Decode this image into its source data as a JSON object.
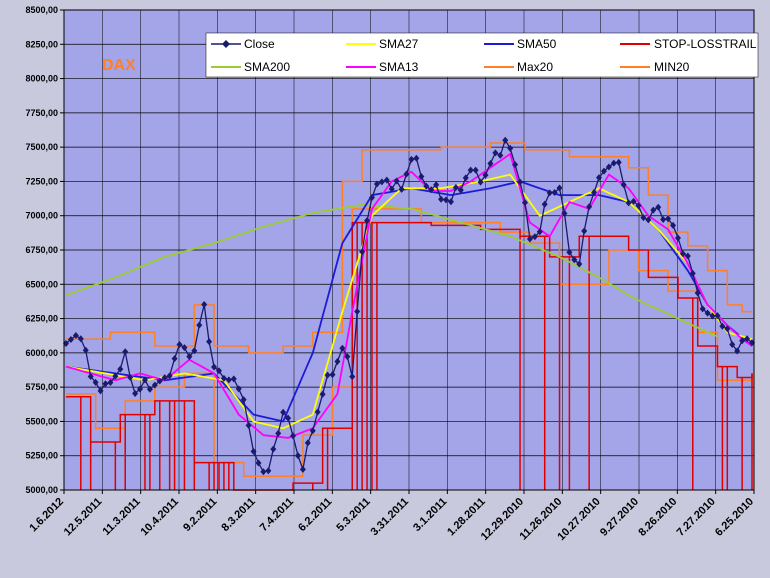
{
  "chart_data": {
    "type": "line",
    "annotation": "DAX",
    "ylim": [
      5000,
      8500
    ],
    "y_ticks": [
      5000,
      5250,
      5500,
      5750,
      6000,
      6250,
      6500,
      6750,
      7000,
      7250,
      7500,
      7750,
      8000,
      8250,
      8500
    ],
    "y_tick_labels": [
      "5000,00",
      "5250,00",
      "5500,00",
      "5750,00",
      "6000,00",
      "6250,00",
      "6500,00",
      "6750,00",
      "7000,00",
      "7250,00",
      "7500,00",
      "7750,00",
      "8000,00",
      "8250,00",
      "8500,00"
    ],
    "x_tick_labels": [
      "1.6.2012",
      "12.5.2011",
      "11.3.2011",
      "10.4.2011",
      "9.2.2011",
      "8.3.2011",
      "7.4.2011",
      "6.2.2011",
      "5.3.2011",
      "3.31.2011",
      "3.1.2011",
      "1.28.2011",
      "12.29.2010",
      "11.26.2010",
      "10.27.2010",
      "9.27.2010",
      "8.26.2010",
      "7.27.2010",
      "6.25.2010"
    ],
    "n_points": 140,
    "legend": {
      "close": "Close",
      "sma27": "SMA27",
      "sma50": "SMA50",
      "stop": "STOP-LOSSTRAIL",
      "sma200": "SMA200",
      "sma13": "SMA13",
      "max20": "Max20",
      "min20": "MIN20"
    },
    "colors": {
      "close": "#1a1a6e",
      "sma27": "#ffff00",
      "sma50": "#1c1cd6",
      "stop": "#e00000",
      "sma200": "#9acd32",
      "sma13": "#ff00ff",
      "maxmin": "#ff7f27",
      "plot_bg": "#a4a4e8",
      "outer_bg": "#c9c9de",
      "grid": "#000000",
      "annotation": "#ff7f27"
    },
    "series": [
      {
        "name": "Close",
        "key": "close",
        "anchors": [
          [
            0,
            6050
          ],
          [
            3,
            6150
          ],
          [
            5,
            5820
          ],
          [
            8,
            5730
          ],
          [
            12,
            5960
          ],
          [
            14,
            5720
          ],
          [
            16,
            5760
          ],
          [
            20,
            5790
          ],
          [
            23,
            6040
          ],
          [
            26,
            6000
          ],
          [
            28,
            6360
          ],
          [
            30,
            5870
          ],
          [
            33,
            5820
          ],
          [
            36,
            5690
          ],
          [
            38,
            5250
          ],
          [
            41,
            5120
          ],
          [
            44,
            5590
          ],
          [
            46,
            5390
          ],
          [
            48,
            5160
          ],
          [
            51,
            5590
          ],
          [
            53,
            5800
          ],
          [
            56,
            6020
          ],
          [
            58,
            5870
          ],
          [
            60,
            6720
          ],
          [
            62,
            7180
          ],
          [
            65,
            7260
          ],
          [
            68,
            7190
          ],
          [
            70,
            7440
          ],
          [
            73,
            7230
          ],
          [
            76,
            7150
          ],
          [
            78,
            7100
          ],
          [
            80,
            7230
          ],
          [
            82,
            7320
          ],
          [
            85,
            7280
          ],
          [
            87,
            7450
          ],
          [
            89,
            7520
          ],
          [
            90,
            7480
          ],
          [
            92,
            7280
          ],
          [
            94,
            6830
          ],
          [
            96,
            6900
          ],
          [
            98,
            7180
          ],
          [
            100,
            7200
          ],
          [
            102,
            6760
          ],
          [
            104,
            6630
          ],
          [
            106,
            7100
          ],
          [
            108,
            7250
          ],
          [
            110,
            7390
          ],
          [
            112,
            7360
          ],
          [
            114,
            7120
          ],
          [
            116,
            7050
          ],
          [
            118,
            6980
          ],
          [
            120,
            7050
          ],
          [
            122,
            6970
          ],
          [
            124,
            6840
          ],
          [
            126,
            6680
          ],
          [
            128,
            6450
          ],
          [
            130,
            6250
          ],
          [
            132,
            6290
          ],
          [
            134,
            6130
          ],
          [
            136,
            6030
          ],
          [
            137,
            6090
          ],
          [
            138,
            6060
          ],
          [
            139,
            6110
          ]
        ]
      },
      {
        "name": "SMA13",
        "key": "sma13",
        "anchors": [
          [
            0,
            5900
          ],
          [
            5,
            5850
          ],
          [
            10,
            5800
          ],
          [
            15,
            5850
          ],
          [
            20,
            5800
          ],
          [
            25,
            5950
          ],
          [
            30,
            5850
          ],
          [
            35,
            5550
          ],
          [
            40,
            5400
          ],
          [
            45,
            5380
          ],
          [
            50,
            5450
          ],
          [
            55,
            5700
          ],
          [
            58,
            6300
          ],
          [
            62,
            7050
          ],
          [
            66,
            7250
          ],
          [
            70,
            7320
          ],
          [
            74,
            7180
          ],
          [
            78,
            7180
          ],
          [
            82,
            7250
          ],
          [
            86,
            7350
          ],
          [
            90,
            7450
          ],
          [
            94,
            6950
          ],
          [
            98,
            6850
          ],
          [
            102,
            7100
          ],
          [
            106,
            7050
          ],
          [
            110,
            7300
          ],
          [
            114,
            7200
          ],
          [
            118,
            7000
          ],
          [
            122,
            6900
          ],
          [
            126,
            6650
          ],
          [
            130,
            6350
          ],
          [
            134,
            6200
          ],
          [
            137,
            6100
          ],
          [
            139,
            6050
          ]
        ]
      },
      {
        "name": "SMA27",
        "key": "sma27",
        "anchors": [
          [
            0,
            5900
          ],
          [
            8,
            5850
          ],
          [
            16,
            5800
          ],
          [
            24,
            5850
          ],
          [
            32,
            5800
          ],
          [
            38,
            5500
          ],
          [
            44,
            5450
          ],
          [
            50,
            5550
          ],
          [
            56,
            6300
          ],
          [
            62,
            7000
          ],
          [
            68,
            7200
          ],
          [
            76,
            7200
          ],
          [
            84,
            7250
          ],
          [
            90,
            7300
          ],
          [
            96,
            7000
          ],
          [
            102,
            7100
          ],
          [
            108,
            7200
          ],
          [
            114,
            7100
          ],
          [
            120,
            6900
          ],
          [
            126,
            6650
          ],
          [
            130,
            6350
          ],
          [
            134,
            6150
          ],
          [
            139,
            6100
          ]
        ]
      },
      {
        "name": "SMA50",
        "key": "sma50",
        "anchors": [
          [
            0,
            5900
          ],
          [
            10,
            5850
          ],
          [
            20,
            5800
          ],
          [
            30,
            5850
          ],
          [
            38,
            5550
          ],
          [
            44,
            5500
          ],
          [
            50,
            6000
          ],
          [
            56,
            6800
          ],
          [
            62,
            7150
          ],
          [
            70,
            7200
          ],
          [
            78,
            7150
          ],
          [
            86,
            7200
          ],
          [
            92,
            7250
          ],
          [
            100,
            7150
          ],
          [
            108,
            7150
          ],
          [
            114,
            7100
          ],
          [
            120,
            6900
          ],
          [
            126,
            6600
          ],
          [
            130,
            6350
          ],
          [
            134,
            6200
          ],
          [
            139,
            6050
          ]
        ]
      },
      {
        "name": "SMA200",
        "key": "sma200",
        "anchors": [
          [
            0,
            6420
          ],
          [
            10,
            6550
          ],
          [
            20,
            6700
          ],
          [
            30,
            6800
          ],
          [
            40,
            6920
          ],
          [
            50,
            7020
          ],
          [
            60,
            7080
          ],
          [
            70,
            7050
          ],
          [
            80,
            6950
          ],
          [
            90,
            6850
          ],
          [
            100,
            6700
          ],
          [
            108,
            6550
          ],
          [
            115,
            6400
          ],
          [
            124,
            6250
          ],
          [
            130,
            6150
          ],
          [
            132,
            6120
          ]
        ]
      },
      {
        "name": "Max20",
        "key": "max20",
        "steps": [
          [
            0,
            6100
          ],
          [
            9,
            6150
          ],
          [
            18,
            6050
          ],
          [
            26,
            6350
          ],
          [
            30,
            6050
          ],
          [
            37,
            6000
          ],
          [
            44,
            6050
          ],
          [
            50,
            6150
          ],
          [
            56,
            7250
          ],
          [
            60,
            7480
          ],
          [
            66,
            7480
          ],
          [
            76,
            7500
          ],
          [
            86,
            7530
          ],
          [
            93,
            7480
          ],
          [
            98,
            7480
          ],
          [
            102,
            7430
          ],
          [
            110,
            7430
          ],
          [
            114,
            7350
          ],
          [
            118,
            7150
          ],
          [
            122,
            6880
          ],
          [
            126,
            6780
          ],
          [
            130,
            6600
          ],
          [
            134,
            6350
          ],
          [
            137,
            6300
          ],
          [
            139,
            6300
          ]
        ]
      },
      {
        "name": "MIN20",
        "key": "min20",
        "steps": [
          [
            0,
            5700
          ],
          [
            6,
            5450
          ],
          [
            12,
            5650
          ],
          [
            18,
            5750
          ],
          [
            24,
            5850
          ],
          [
            30,
            5200
          ],
          [
            36,
            5100
          ],
          [
            44,
            5100
          ],
          [
            48,
            5400
          ],
          [
            54,
            5750
          ],
          [
            58,
            7050
          ],
          [
            66,
            7050
          ],
          [
            72,
            6950
          ],
          [
            80,
            6950
          ],
          [
            88,
            6880
          ],
          [
            94,
            6800
          ],
          [
            100,
            6500
          ],
          [
            106,
            6500
          ],
          [
            110,
            6750
          ],
          [
            116,
            6600
          ],
          [
            122,
            6450
          ],
          [
            128,
            6150
          ],
          [
            132,
            5800
          ],
          [
            137,
            5800
          ],
          [
            139,
            5850
          ]
        ]
      },
      {
        "name": "STOP-LOSSTRAIL",
        "key": "stop",
        "steps": [
          [
            0,
            5680
          ],
          [
            5,
            5350
          ],
          [
            11,
            5550
          ],
          [
            18,
            5650
          ],
          [
            26,
            5200
          ],
          [
            34,
            5000
          ],
          [
            46,
            5050
          ],
          [
            52,
            5450
          ],
          [
            58,
            6950
          ],
          [
            66,
            6950
          ],
          [
            74,
            6930
          ],
          [
            84,
            6900
          ],
          [
            92,
            6850
          ],
          [
            98,
            6700
          ],
          [
            104,
            6850
          ],
          [
            110,
            6850
          ],
          [
            114,
            6750
          ],
          [
            118,
            6550
          ],
          [
            124,
            6400
          ],
          [
            128,
            6050
          ],
          [
            132,
            5900
          ],
          [
            136,
            5820
          ],
          [
            139,
            5850
          ]
        ],
        "drops": [
          3,
          5,
          10,
          12,
          16,
          17,
          19,
          21,
          22,
          24,
          26,
          29,
          30,
          31,
          32,
          33,
          34,
          36,
          37,
          38,
          40,
          45,
          50,
          53,
          58,
          59,
          60,
          61,
          62,
          63,
          92,
          97,
          100,
          102,
          106,
          127,
          133,
          134,
          137,
          139
        ]
      }
    ]
  }
}
